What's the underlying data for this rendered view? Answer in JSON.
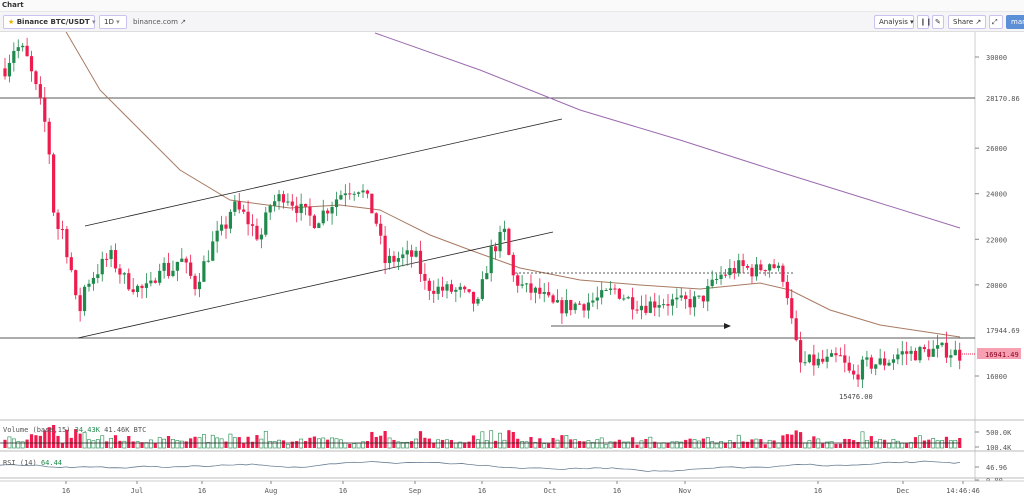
{
  "window": {
    "title": "Chart"
  },
  "toolbar": {
    "symbol": "Binance BTC/USDT",
    "interval": "1D",
    "source": "binance.com",
    "analysis": "Analysis",
    "share": "Share",
    "manual": "manual"
  },
  "colors": {
    "up": "#1f8a4c",
    "down": "#ee1c4e",
    "ma50": "#a87a62",
    "ma200": "#9b6bb0",
    "price_tag": "#f7a0b1"
  },
  "chart_data": {
    "type": "candlestick",
    "symbol": "BTC/USDT",
    "interval": "1D",
    "ylim": [
      15000,
      31500
    ],
    "price_ticks": [
      "30000",
      "26000",
      "24000",
      "22000",
      "20000",
      "16000"
    ],
    "levels": {
      "resistance": "28170.86",
      "support": "17944.69",
      "last": "16941.49",
      "low_label": "15476.00"
    },
    "time_ticks": [
      "16",
      "Jul",
      "16",
      "Aug",
      "16",
      "Sep",
      "16",
      "Oct",
      "16",
      "Nov",
      "16",
      "Dec",
      "14:46:46"
    ],
    "close_path": [
      29500,
      30500,
      30200,
      28000,
      26500,
      22500,
      22500,
      20500,
      18500,
      20000,
      20500,
      21300,
      20200,
      19800,
      19800,
      21000,
      20500,
      21200,
      20000,
      21000,
      22000,
      22500,
      23500,
      23000,
      22000,
      23500,
      24000,
      23300,
      22800,
      23500,
      24200,
      24300,
      23000,
      21000,
      21200,
      21300,
      20000,
      19800,
      19700,
      19100,
      21400,
      22300,
      20400,
      19800,
      19600,
      19000,
      19100,
      19200,
      19400,
      19800,
      19300,
      19100,
      19300,
      19200,
      19300,
      20400,
      20800,
      20600,
      21000,
      20300,
      18000,
      16500,
      16600,
      16600,
      16800,
      15900,
      16500,
      16600,
      17000,
      17000,
      17100,
      17150,
      16940
    ],
    "volume": {
      "label": "Volume (base,15)",
      "value1": "34.43K",
      "value2": "41.46K BTC",
      "ticks": [
        "500.0K",
        "100.4K"
      ]
    },
    "rsi": {
      "label": "RSI (14)",
      "value": "64.44",
      "ticks": [
        "46.96",
        "0.00"
      ]
    }
  }
}
